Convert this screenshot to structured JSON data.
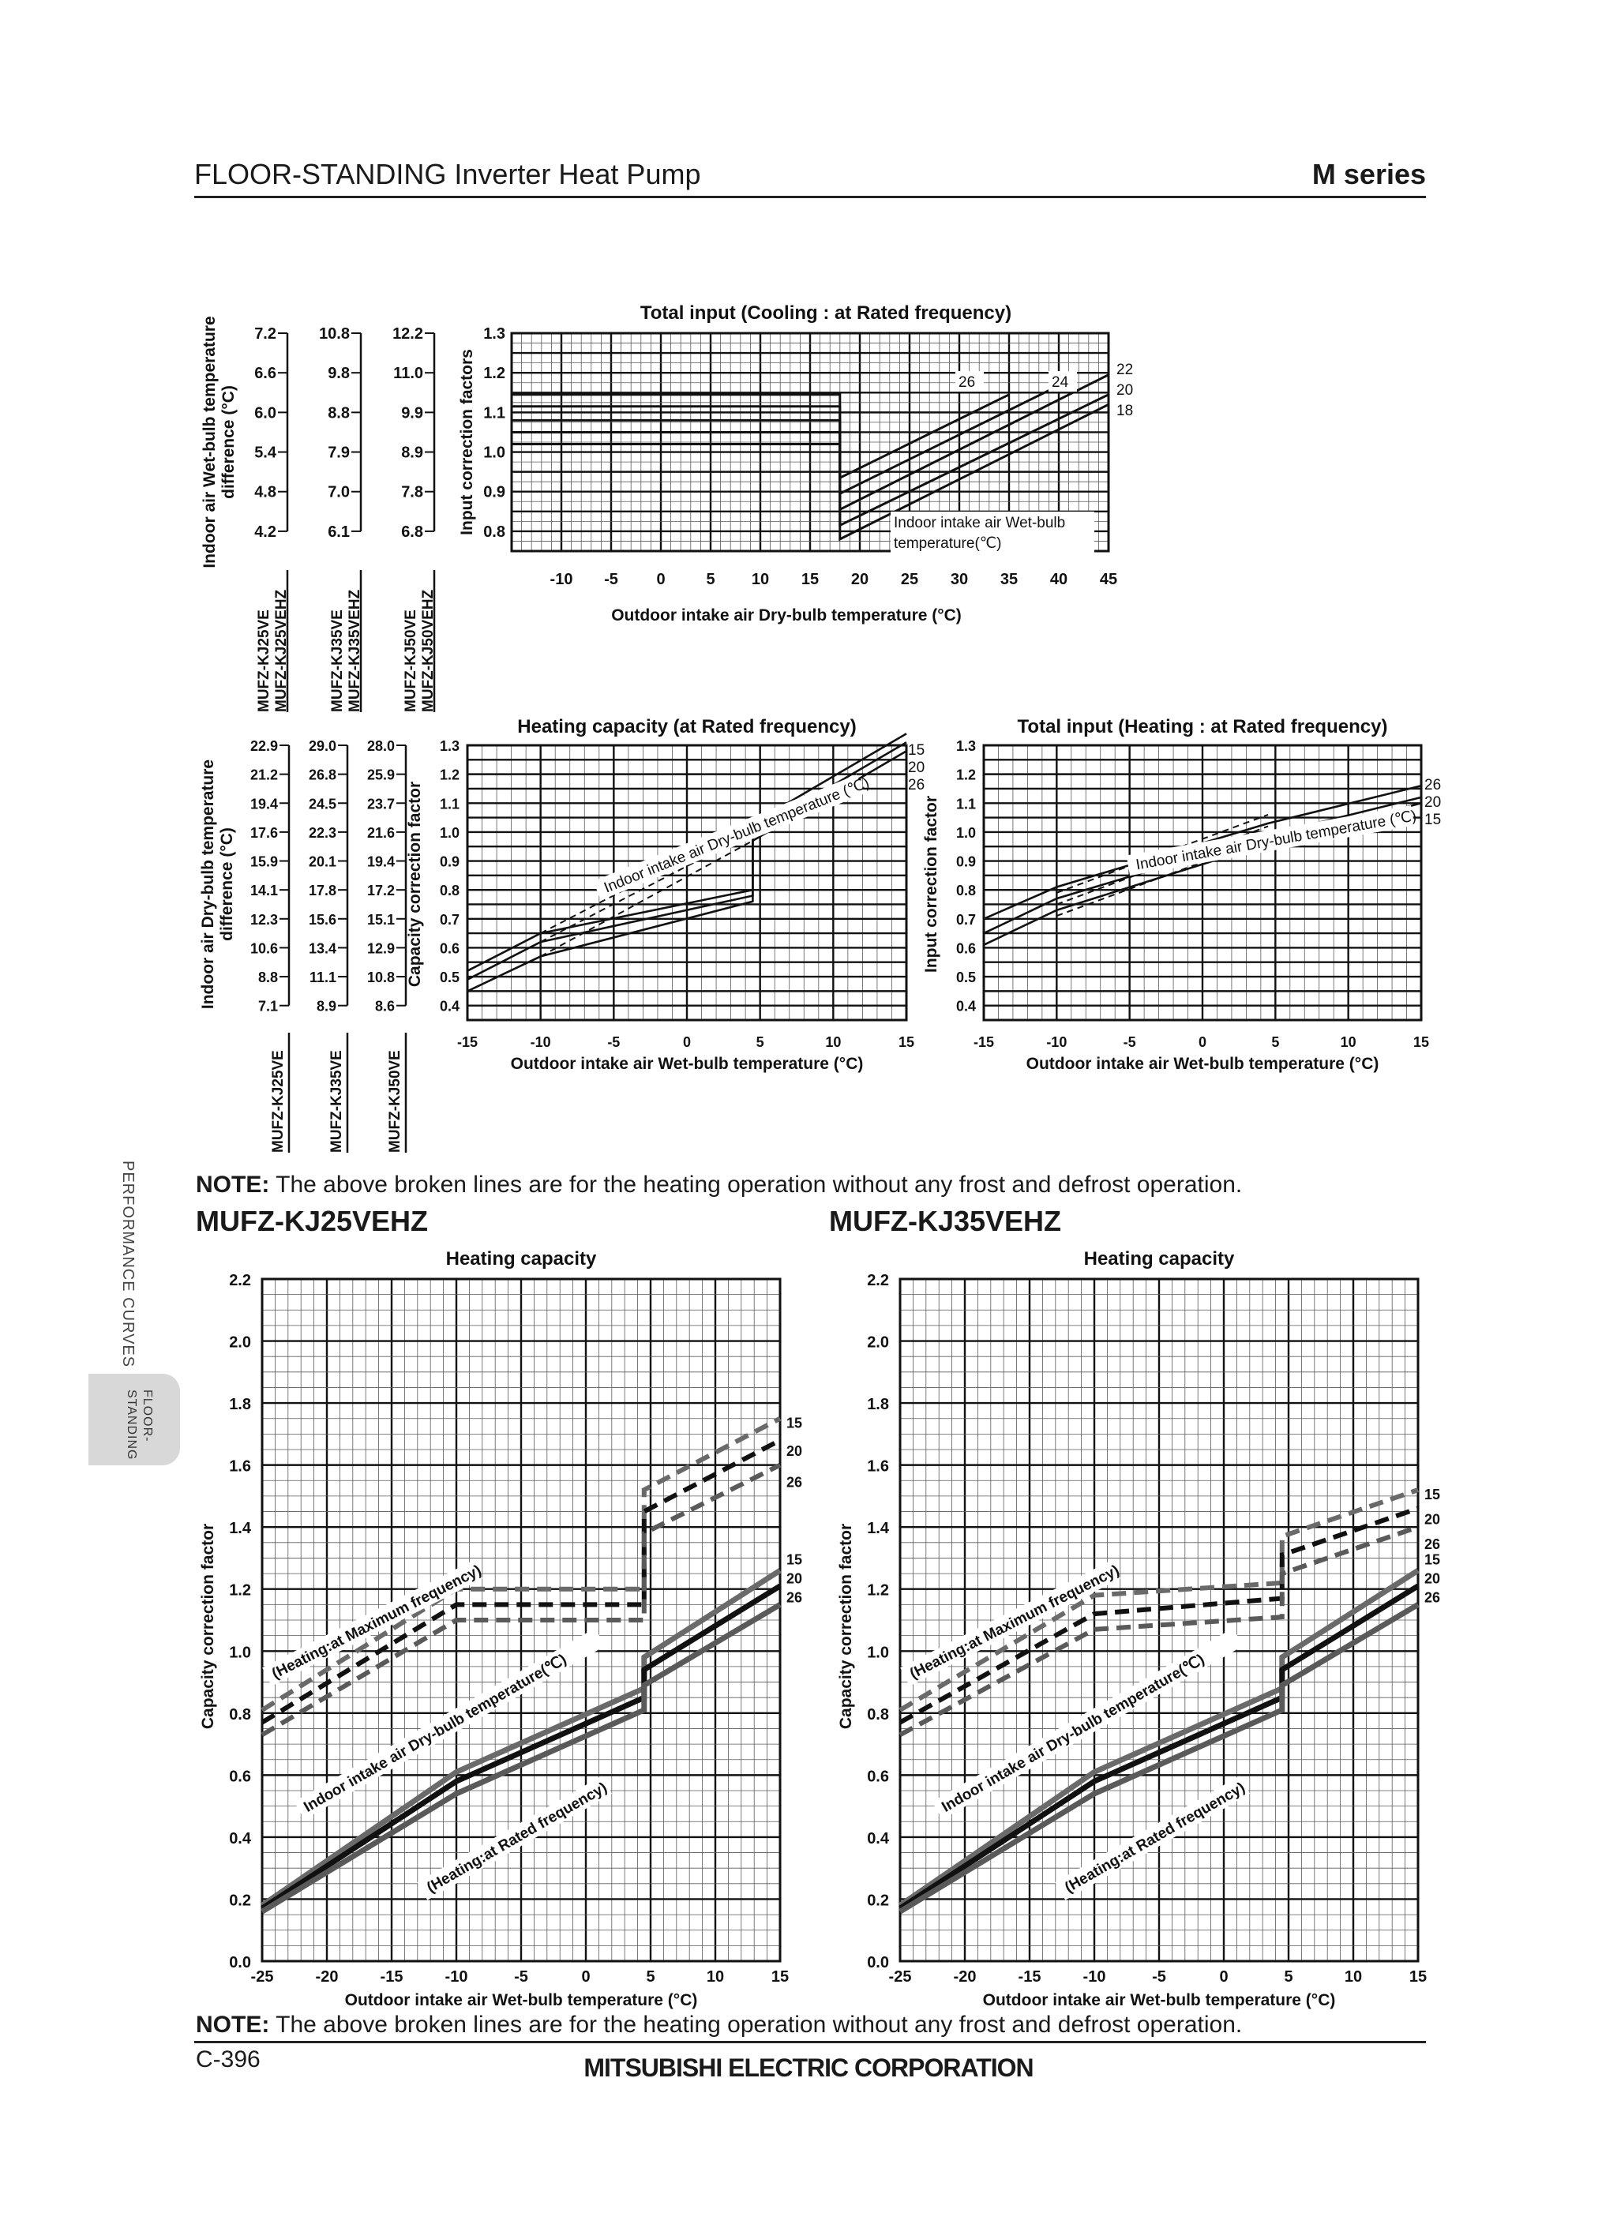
{
  "header": {
    "title": "FLOOR-STANDING Inverter Heat Pump",
    "series": "M series"
  },
  "side_tab": {
    "label_line1": "FLOOR-",
    "label_line2": "STANDING",
    "section": "PERFORMANCE CURVES"
  },
  "note_top": {
    "prefix": "NOTE:",
    "text": "The above broken lines are for the heating operation without any frost and defrost operation."
  },
  "note_bottom": {
    "prefix": "NOTE:",
    "text": "The above broken lines are for the heating operation without any frost and defrost operation."
  },
  "models": {
    "left": "MUFZ-KJ25VEHZ",
    "right": "MUFZ-KJ35VEHZ"
  },
  "footer": {
    "page": "C-396",
    "company": "MITSUBISHI ELECTRIC CORPORATION"
  },
  "colors": {
    "ink": "#111111",
    "rated_gray": "#6e6e6e",
    "max_gray": "#5a5a5a",
    "tab_gray": "#d8d8d8"
  },
  "chart_data": [
    {
      "id": "cooling_input",
      "type": "line",
      "title": "Total input (Cooling : at Rated frequency)",
      "xlabel": "Outdoor intake air Dry-bulb temperature (°C)",
      "ylabel": "Input correction factors",
      "xticks": [
        "-10",
        "-5",
        "0",
        "5",
        "10",
        "15",
        "20",
        "25",
        "30",
        "35",
        "40",
        "45"
      ],
      "yticks": [
        "1.3",
        "1.2",
        "1.1",
        "1.0",
        "0.9",
        "0.8"
      ],
      "xlim": [
        -15,
        45
      ],
      "ylim": [
        0.75,
        1.3
      ],
      "left_axis_title": "Indoor air Wet-bulb temperature difference (°C)",
      "left_scales": [
        {
          "model": [
            "MUFZ-KJ25VE",
            "MUFZ-KJ25VEHZ"
          ],
          "values": [
            "7.2",
            "6.6",
            "6.0",
            "5.4",
            "4.8",
            "4.2"
          ]
        },
        {
          "model": [
            "MUFZ-KJ35VE",
            "MUFZ-KJ35VEHZ"
          ],
          "values": [
            "10.8",
            "9.8",
            "8.8",
            "7.9",
            "7.0",
            "6.1"
          ]
        },
        {
          "model": [
            "MUFZ-KJ50VE",
            "MUFZ-KJ50VEHZ"
          ],
          "values": [
            "12.2",
            "11.0",
            "9.9",
            "8.9",
            "7.8",
            "6.8"
          ]
        }
      ],
      "legend_title": "Indoor intake air Wet-bulb temperature(℃)",
      "series": [
        {
          "name": "26",
          "points": [
            [
              -15,
              1.145
            ],
            [
              18,
              1.145
            ],
            [
              18,
              0.935
            ],
            [
              35,
              1.145
            ]
          ]
        },
        {
          "name": "24",
          "points": [
            [
              -15,
              1.115
            ],
            [
              18,
              1.115
            ],
            [
              18,
              0.895
            ],
            [
              41,
              1.18
            ]
          ]
        },
        {
          "name": "22",
          "points": [
            [
              -15,
              1.08
            ],
            [
              18,
              1.08
            ],
            [
              18,
              0.855
            ],
            [
              45,
              1.195
            ]
          ]
        },
        {
          "name": "20",
          "points": [
            [
              -15,
              1.05
            ],
            [
              18,
              1.05
            ],
            [
              18,
              0.815
            ],
            [
              45,
              1.145
            ]
          ]
        },
        {
          "name": "18",
          "points": [
            [
              -15,
              1.02
            ],
            [
              18,
              1.02
            ],
            [
              18,
              0.78
            ],
            [
              45,
              1.12
            ]
          ]
        }
      ],
      "grid": true
    },
    {
      "id": "heating_capacity_rated",
      "type": "line",
      "title": "Heating capacity (at Rated frequency)",
      "xlabel": "Outdoor intake air Wet-bulb temperature (°C)",
      "ylabel": "Capacity correction factor",
      "xticks": [
        "-15",
        "-10",
        "-5",
        "0",
        "5",
        "10",
        "15"
      ],
      "yticks": [
        "1.3",
        "1.2",
        "1.1",
        "1.0",
        "0.9",
        "0.8",
        "0.7",
        "0.6",
        "0.5",
        "0.4"
      ],
      "xlim": [
        -15,
        15
      ],
      "ylim": [
        0.35,
        1.3
      ],
      "left_axis_title": "Indoor air Dry-bulb temperature difference (°C)",
      "left_scales": [
        {
          "model": [
            "MUFZ-KJ25VE"
          ],
          "values": [
            "22.9",
            "21.2",
            "19.4",
            "17.6",
            "15.9",
            "14.1",
            "12.3",
            "10.6",
            "8.8",
            "7.1"
          ]
        },
        {
          "model": [
            "MUFZ-KJ35VE"
          ],
          "values": [
            "29.0",
            "26.8",
            "24.5",
            "22.3",
            "20.1",
            "17.8",
            "15.6",
            "13.4",
            "11.1",
            "8.9"
          ]
        },
        {
          "model": [
            "MUFZ-KJ50VE"
          ],
          "values": [
            "28.0",
            "25.9",
            "23.7",
            "21.6",
            "19.4",
            "17.2",
            "15.1",
            "12.9",
            "10.8",
            "8.6"
          ]
        }
      ],
      "legend_title": "Indoor intake air Dry-bulb temperature (℃)",
      "series": [
        {
          "name": "15",
          "points": [
            [
              -15,
              0.52
            ],
            [
              -10,
              0.65
            ],
            [
              4.5,
              0.8
            ],
            [
              4.5,
              1.03
            ],
            [
              15,
              1.34
            ]
          ]
        },
        {
          "name": "20",
          "points": [
            [
              -15,
              0.49
            ],
            [
              -10,
              0.62
            ],
            [
              4.5,
              0.78
            ],
            [
              4.5,
              1.0
            ],
            [
              15,
              1.31
            ]
          ]
        },
        {
          "name": "26",
          "points": [
            [
              -15,
              0.45
            ],
            [
              -10,
              0.57
            ],
            [
              4.5,
              0.76
            ],
            [
              4.5,
              0.97
            ],
            [
              15,
              1.28
            ]
          ]
        },
        {
          "name": "15 (no frost)",
          "style": "dashed",
          "points": [
            [
              -10,
              0.65
            ],
            [
              4.5,
              1.03
            ]
          ]
        },
        {
          "name": "20 (no frost)",
          "style": "dashed",
          "points": [
            [
              -10,
              0.62
            ],
            [
              4.5,
              1.0
            ]
          ]
        },
        {
          "name": "26 (no frost)",
          "style": "dashed",
          "points": [
            [
              -10,
              0.57
            ],
            [
              4.5,
              0.97
            ]
          ]
        }
      ],
      "grid": true
    },
    {
      "id": "heating_input",
      "type": "line",
      "title": "Total input (Heating : at Rated frequency)",
      "xlabel": "Outdoor intake air Wet-bulb temperature (°C)",
      "ylabel": "Input correction factor",
      "xticks": [
        "-15",
        "-10",
        "-5",
        "0",
        "5",
        "10",
        "15"
      ],
      "yticks": [
        "1.3",
        "1.2",
        "1.1",
        "1.0",
        "0.9",
        "0.8",
        "0.7",
        "0.6",
        "0.5",
        "0.4"
      ],
      "xlim": [
        -15,
        15
      ],
      "ylim": [
        0.35,
        1.3
      ],
      "legend_title": "Indoor intake air Dry-bulb temperature (℃)",
      "series": [
        {
          "name": "26",
          "points": [
            [
              -15,
              0.7
            ],
            [
              -10,
              0.81
            ],
            [
              4.5,
              1.03
            ],
            [
              15,
              1.16
            ]
          ]
        },
        {
          "name": "20",
          "points": [
            [
              -15,
              0.65
            ],
            [
              -10,
              0.77
            ],
            [
              4.5,
              0.99
            ],
            [
              15,
              1.12
            ]
          ]
        },
        {
          "name": "15",
          "points": [
            [
              -15,
              0.61
            ],
            [
              -10,
              0.73
            ],
            [
              4.5,
              0.96
            ],
            [
              15,
              1.1
            ]
          ]
        },
        {
          "name": "26 (no frost)",
          "style": "dashed",
          "points": [
            [
              -10,
              0.79
            ],
            [
              4.5,
              1.06
            ]
          ]
        },
        {
          "name": "20 (no frost)",
          "style": "dashed",
          "points": [
            [
              -10,
              0.75
            ],
            [
              4.5,
              1.02
            ]
          ]
        },
        {
          "name": "15 (no frost)",
          "style": "dashed",
          "points": [
            [
              -10,
              0.71
            ],
            [
              4.5,
              0.98
            ]
          ]
        }
      ],
      "grid": true
    },
    {
      "id": "kj25_heating_capacity",
      "type": "line",
      "model": "MUFZ-KJ25VEHZ",
      "title": "Heating capacity",
      "xlabel": "Outdoor intake air Wet-bulb temperature (°C)",
      "ylabel": "Capacity correction factor",
      "xticks": [
        "-25",
        "-20",
        "-15",
        "-10",
        "-5",
        "0",
        "5",
        "10",
        "15"
      ],
      "yticks": [
        "2.2",
        "2.0",
        "1.8",
        "1.6",
        "1.4",
        "1.2",
        "1.0",
        "0.8",
        "0.6",
        "0.4",
        "0.2",
        "0.0"
      ],
      "xlim": [
        -25,
        15
      ],
      "ylim": [
        0,
        2.2
      ],
      "annotations": [
        "(Heating:at  Maximum frequency)",
        "Indoor intake air Dry-bulb temperature(℃)",
        "(Heating:at  Rated frequency)"
      ],
      "series": [
        {
          "name": "15",
          "group": "max",
          "style": "dashed",
          "points": [
            [
              -25,
              0.81
            ],
            [
              -10,
              1.2
            ],
            [
              4.5,
              1.2
            ],
            [
              4.5,
              1.52
            ],
            [
              15,
              1.75
            ]
          ]
        },
        {
          "name": "20",
          "group": "max",
          "style": "dashed",
          "points": [
            [
              -25,
              0.77
            ],
            [
              -10,
              1.15
            ],
            [
              4.5,
              1.15
            ],
            [
              4.5,
              1.45
            ],
            [
              15,
              1.68
            ]
          ]
        },
        {
          "name": "26",
          "group": "max",
          "style": "dashed",
          "points": [
            [
              -25,
              0.73
            ],
            [
              -10,
              1.1
            ],
            [
              4.5,
              1.1
            ],
            [
              4.5,
              1.38
            ],
            [
              15,
              1.6
            ]
          ]
        },
        {
          "name": "15",
          "group": "rated",
          "points": [
            [
              -25,
              0.18
            ],
            [
              -10,
              0.61
            ],
            [
              4.5,
              0.88
            ],
            [
              4.5,
              0.98
            ],
            [
              15,
              1.26
            ]
          ]
        },
        {
          "name": "20",
          "group": "rated",
          "points": [
            [
              -25,
              0.17
            ],
            [
              -10,
              0.58
            ],
            [
              4.5,
              0.85
            ],
            [
              4.5,
              0.94
            ],
            [
              15,
              1.21
            ]
          ]
        },
        {
          "name": "26",
          "group": "rated",
          "points": [
            [
              -25,
              0.16
            ],
            [
              -10,
              0.54
            ],
            [
              4.5,
              0.81
            ],
            [
              4.5,
              0.89
            ],
            [
              15,
              1.15
            ]
          ]
        }
      ],
      "grid": true
    },
    {
      "id": "kj35_heating_capacity",
      "type": "line",
      "model": "MUFZ-KJ35VEHZ",
      "title": "Heating capacity",
      "xlabel": "Outdoor intake air Wet-bulb temperature (°C)",
      "ylabel": "Capacity correction factor",
      "xticks": [
        "-25",
        "-20",
        "-15",
        "-10",
        "-5",
        "0",
        "5",
        "10",
        "15"
      ],
      "yticks": [
        "2.2",
        "2.0",
        "1.8",
        "1.6",
        "1.4",
        "1.2",
        "1.0",
        "0.8",
        "0.6",
        "0.4",
        "0.2",
        "0.0"
      ],
      "xlim": [
        -25,
        15
      ],
      "ylim": [
        0,
        2.2
      ],
      "annotations": [
        "(Heating:at  Maximum frequency)",
        "Indoor intake air Dry-bulb temperature(℃)",
        "(Heating:at  Rated frequency)"
      ],
      "series": [
        {
          "name": "15",
          "group": "max",
          "style": "dashed",
          "points": [
            [
              -25,
              0.81
            ],
            [
              -10,
              1.18
            ],
            [
              4.5,
              1.22
            ],
            [
              4.5,
              1.37
            ],
            [
              15,
              1.52
            ]
          ]
        },
        {
          "name": "20",
          "group": "max",
          "style": "dashed",
          "points": [
            [
              -25,
              0.77
            ],
            [
              -10,
              1.12
            ],
            [
              4.5,
              1.17
            ],
            [
              4.5,
              1.31
            ],
            [
              15,
              1.46
            ]
          ]
        },
        {
          "name": "26",
          "group": "max",
          "style": "dashed",
          "points": [
            [
              -25,
              0.73
            ],
            [
              -10,
              1.07
            ],
            [
              4.5,
              1.11
            ],
            [
              4.5,
              1.25
            ],
            [
              15,
              1.4
            ]
          ]
        },
        {
          "name": "15",
          "group": "rated",
          "points": [
            [
              -25,
              0.18
            ],
            [
              -10,
              0.61
            ],
            [
              4.5,
              0.88
            ],
            [
              4.5,
              0.98
            ],
            [
              15,
              1.26
            ]
          ]
        },
        {
          "name": "20",
          "group": "rated",
          "points": [
            [
              -25,
              0.17
            ],
            [
              -10,
              0.58
            ],
            [
              4.5,
              0.85
            ],
            [
              4.5,
              0.94
            ],
            [
              15,
              1.21
            ]
          ]
        },
        {
          "name": "26",
          "group": "rated",
          "points": [
            [
              -25,
              0.16
            ],
            [
              -10,
              0.54
            ],
            [
              4.5,
              0.81
            ],
            [
              4.5,
              0.89
            ],
            [
              15,
              1.15
            ]
          ]
        }
      ],
      "grid": true
    }
  ]
}
